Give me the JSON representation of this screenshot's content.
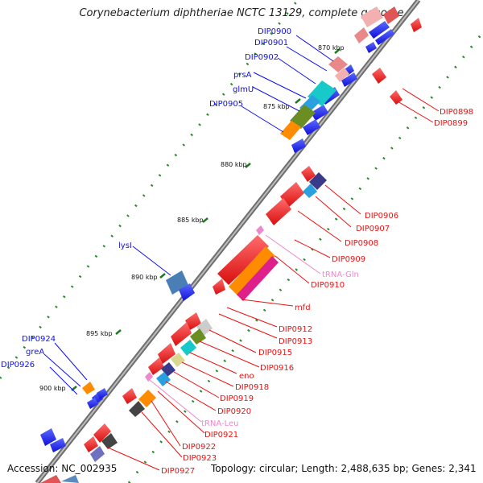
{
  "title": "Corynebacterium diphtheriae NCTC 13129, complete genome",
  "footer": {
    "accession": "Accession: NC_002935",
    "topology": "Topology: circular; Length: 2,488,635 bp; Genes: 2,341"
  },
  "ticks": [
    "870 kbp",
    "875 kbp",
    "880 kbp",
    "885 kbp",
    "890 kbp",
    "895 kbp",
    "900 kbp"
  ],
  "labels_left": [
    "DIP0900",
    "DIP0901",
    "DIP0902",
    "prsA",
    "glmU",
    "DIP0905",
    "lysI",
    "DIP0924",
    "greA",
    "DIP0926"
  ],
  "labels_right": [
    "DIP0898",
    "DIP0899",
    "DIP0906",
    "DIP0907",
    "DIP0908",
    "DIP0909",
    "tRNA-Gln",
    "DIP0910",
    "mfd",
    "DIP0912",
    "DIP0913",
    "DIP0915",
    "DIP0916",
    "eno",
    "DIP0918",
    "DIP0919",
    "DIP0920",
    "tRNA-Leu",
    "DIP0921",
    "DIP0922",
    "DIP0923",
    "DIP0927"
  ],
  "colors": {
    "forward_gene": "#1010ee",
    "reverse_gene": "#ee1111",
    "trna": "#ee88cc",
    "backbone": "#888888"
  }
}
